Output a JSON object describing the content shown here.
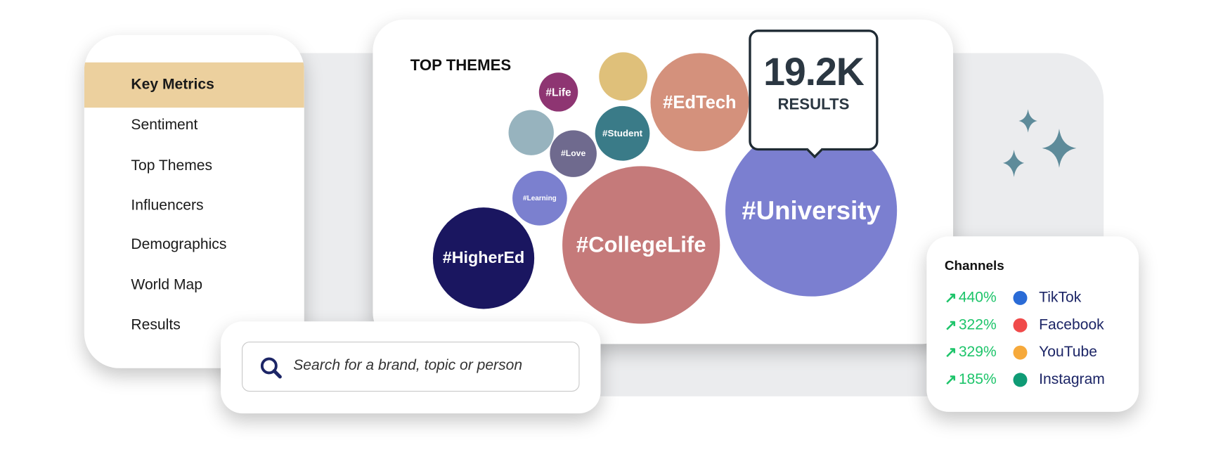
{
  "sidebar": {
    "items": [
      {
        "label": "Key Metrics",
        "active": true
      },
      {
        "label": "Sentiment"
      },
      {
        "label": "Top Themes"
      },
      {
        "label": "Influencers"
      },
      {
        "label": "Demographics"
      },
      {
        "label": "World Map"
      },
      {
        "label": "Results"
      }
    ]
  },
  "themes": {
    "title": "TOP THEMES",
    "bubbles": [
      {
        "label": "#Life",
        "color": "#8e3572"
      },
      {
        "label": "",
        "color": "#dfc07a"
      },
      {
        "label": "#EdTech",
        "color": "#d4917c"
      },
      {
        "label": "",
        "color": "#97b3be"
      },
      {
        "label": "#Student",
        "color": "#3a7b88"
      },
      {
        "label": "#Love",
        "color": "#6f6a8e"
      },
      {
        "label": "#Learning",
        "color": "#7b80cf"
      },
      {
        "label": "#HigherEd",
        "color": "#1a1660"
      },
      {
        "label": "#CollegeLife",
        "color": "#c57a7a"
      },
      {
        "label": "#University",
        "color": "#7b7fd0"
      }
    ],
    "tooltip": {
      "value": "19.2K",
      "label": "RESULTS"
    }
  },
  "search": {
    "placeholder": "Search for a brand, topic or person",
    "icon": "search-icon"
  },
  "channels": {
    "title": "Channels",
    "items": [
      {
        "change": "440%",
        "name": "TikTok",
        "color": "#2a6bd6",
        "trend": "up"
      },
      {
        "change": "322%",
        "name": "Facebook",
        "color": "#f04a4a",
        "trend": "up"
      },
      {
        "change": "329%",
        "name": "YouTube",
        "color": "#f6a93b",
        "trend": "up"
      },
      {
        "change": "185%",
        "name": "Instagram",
        "color": "#0f9b75",
        "trend": "up"
      }
    ]
  },
  "colors": {
    "highlight": "#ecd09e",
    "sparkle": "#5e8b9a",
    "trend_up": "#1dc46a"
  }
}
